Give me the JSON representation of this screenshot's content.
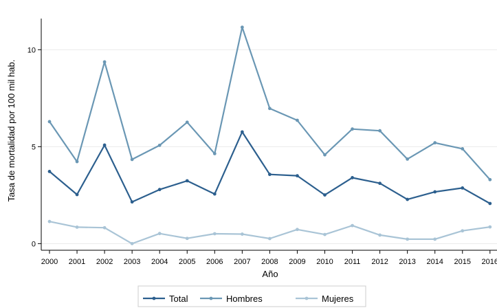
{
  "chart_data": {
    "type": "line",
    "title": "",
    "xlabel": "Año",
    "ylabel": "Tasa de mortalidad por 100 mil hab.",
    "categories": [
      "2000",
      "2001",
      "2002",
      "2003",
      "2004",
      "2005",
      "2006",
      "2007",
      "2008",
      "2009",
      "2010",
      "2011",
      "2012",
      "2013",
      "2014",
      "2015",
      "2016"
    ],
    "yticks": [
      0,
      5,
      10
    ],
    "ylim": [
      -0.2,
      11.5
    ],
    "grid": true,
    "legend_position": "bottom",
    "series": [
      {
        "name": "Total",
        "color": "#2c5f8e",
        "values": [
          3.72,
          2.53,
          5.08,
          2.15,
          2.79,
          3.24,
          2.56,
          5.76,
          3.57,
          3.5,
          2.51,
          3.4,
          3.11,
          2.28,
          2.67,
          2.87,
          2.07
        ]
      },
      {
        "name": "Hombres",
        "color": "#6a97b4",
        "values": [
          6.29,
          4.23,
          9.37,
          4.34,
          5.07,
          6.26,
          4.64,
          11.16,
          6.97,
          6.36,
          4.58,
          5.91,
          5.82,
          4.36,
          5.2,
          4.89,
          3.3
        ]
      },
      {
        "name": "Mujeres",
        "color": "#a9c4d6",
        "values": [
          1.14,
          0.85,
          0.82,
          0.0,
          0.52,
          0.27,
          0.51,
          0.49,
          0.26,
          0.73,
          0.47,
          0.93,
          0.44,
          0.23,
          0.23,
          0.66,
          0.86
        ]
      }
    ]
  }
}
